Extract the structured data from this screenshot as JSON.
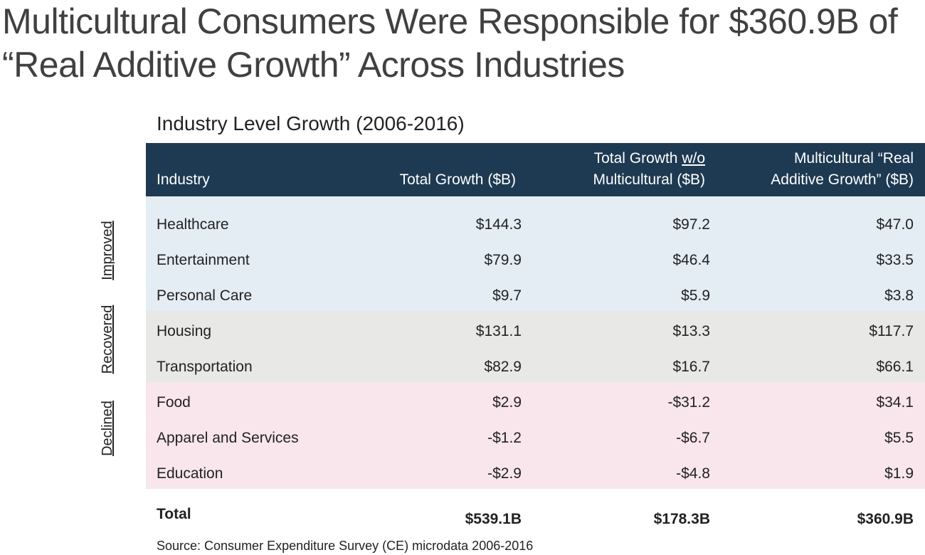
{
  "title": {
    "line1": "Multicultural Consumers Were Responsible for $360.9B of",
    "line2": "“Real Additive Growth” Across Industries"
  },
  "subtitle": "Industry Level Growth (2006-2016)",
  "columns": {
    "industry": "Industry",
    "total": "Total Growth ($B)",
    "wo_line1_prefix": "Total Growth ",
    "wo_line1_underlined": "w/o",
    "wo_line2": "Multicultural ($B)",
    "mc_line1": "Multicultural “Real",
    "mc_line2": "Additive Growth” ($B)"
  },
  "groups": {
    "improved": "Improved",
    "recovered": "Recovered",
    "declined": "Declined"
  },
  "rows": [
    {
      "industry": "Healthcare",
      "total": "$144.3",
      "without_mc": "$97.2",
      "mc": "$47.0"
    },
    {
      "industry": "Entertainment",
      "total": "$79.9",
      "without_mc": "$46.4",
      "mc": "$33.5"
    },
    {
      "industry": "Personal Care",
      "total": "$9.7",
      "without_mc": "$5.9",
      "mc": "$3.8"
    },
    {
      "industry": "Housing",
      "total": "$131.1",
      "without_mc": "$13.3",
      "mc": "$117.7"
    },
    {
      "industry": "Transportation",
      "total": "$82.9",
      "without_mc": "$16.7",
      "mc": "$66.1"
    },
    {
      "industry": "Food",
      "total": "$2.9",
      "without_mc": "-$31.2",
      "mc": "$34.1"
    },
    {
      "industry": "Apparel and Services",
      "total": "-$1.2",
      "without_mc": "-$6.7",
      "mc": "$5.5"
    },
    {
      "industry": "Education",
      "total": "-$2.9",
      "without_mc": "-$4.8",
      "mc": "$1.9"
    }
  ],
  "total": {
    "label": "Total",
    "total": "$539.1B",
    "without_mc": "$178.3B",
    "mc": "$360.9B"
  },
  "source": "Source: Consumer Expenditure Survey (CE) microdata 2006-2016",
  "colors": {
    "header_bg": "#1e3a52",
    "improved_bg": "#e4edf3",
    "recovered_bg": "#e8e8e6",
    "declined_bg": "#f9e6ec"
  }
}
